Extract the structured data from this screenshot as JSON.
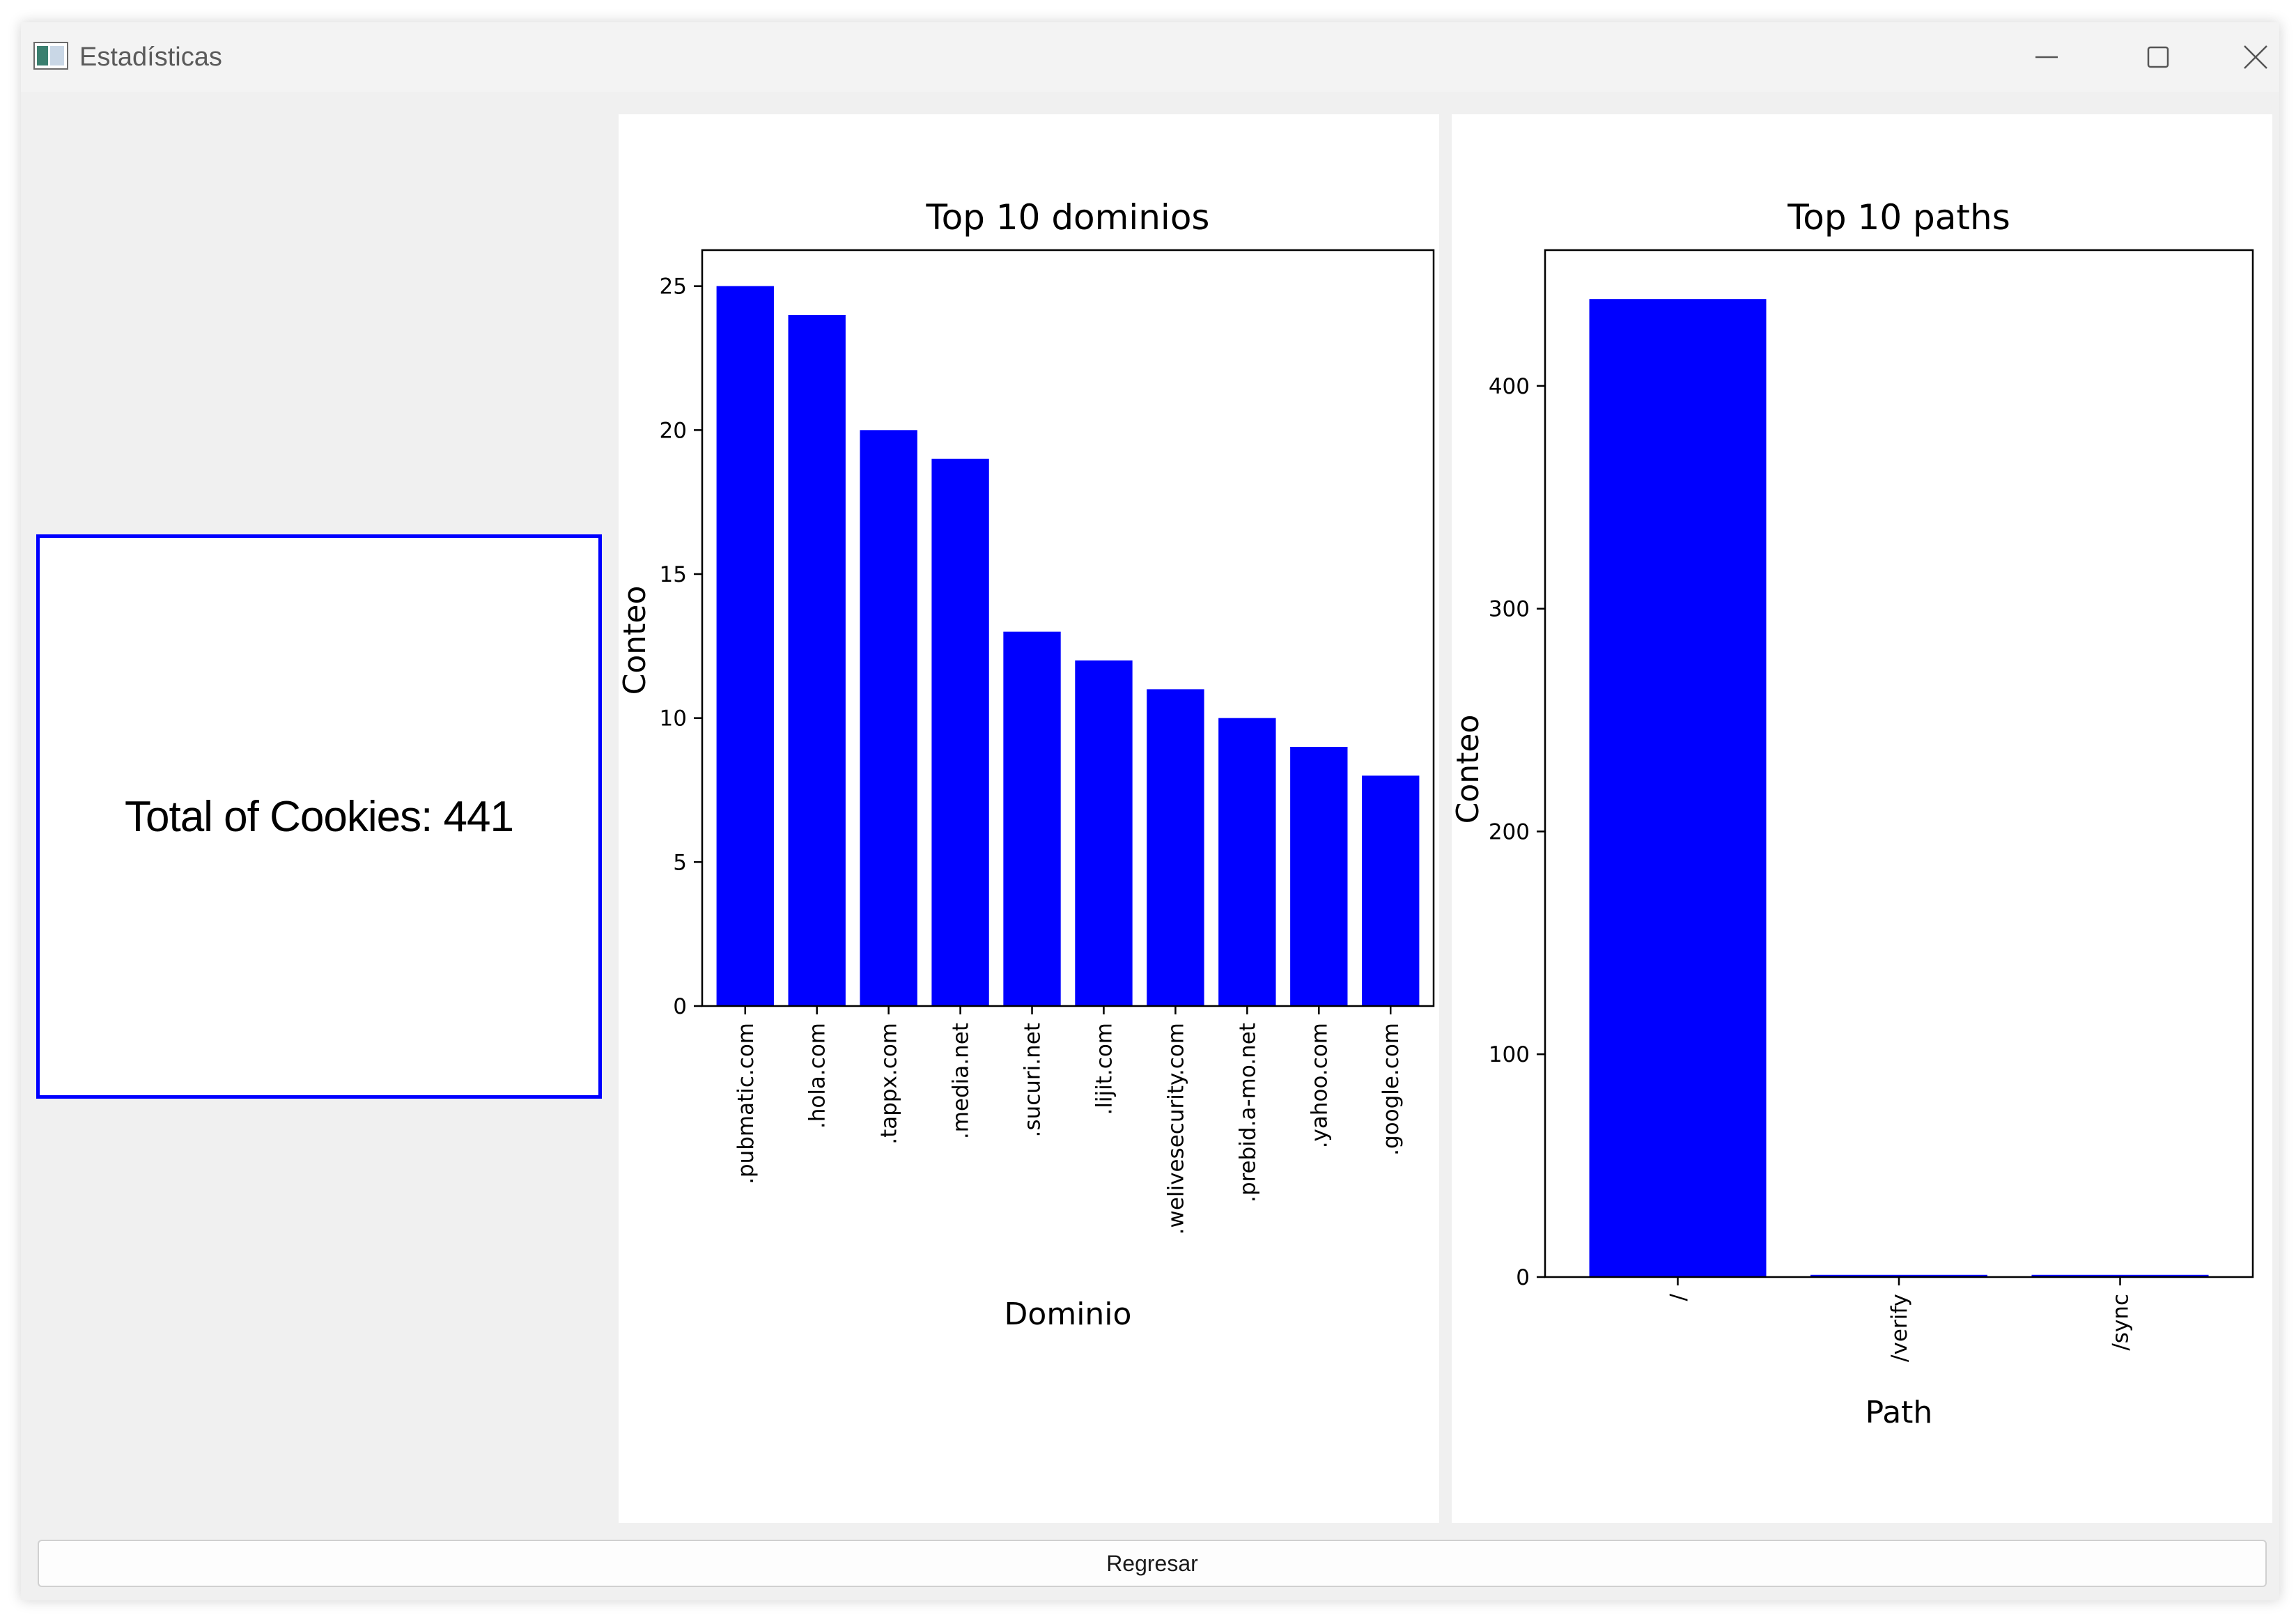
{
  "window": {
    "title": "Estadísticas"
  },
  "summary": {
    "total_label": "Total of Cookies: 441"
  },
  "footer": {
    "back_label": "Regresar"
  },
  "colors": {
    "bar": "#0000ff",
    "box_border": "#0000ff"
  },
  "chart_data": [
    {
      "type": "bar",
      "title": "Top 10 dominios",
      "xlabel": "Dominio",
      "ylabel": "Conteo",
      "categories": [
        ".pubmatic.com",
        ".hola.com",
        ".tappx.com",
        ".media.net",
        ".sucuri.net",
        ".lijit.com",
        ".welivesecurity.com",
        ".prebid.a-mo.net",
        ".yahoo.com",
        ".google.com"
      ],
      "values": [
        25,
        24,
        20,
        19,
        13,
        12,
        11,
        10,
        9,
        8
      ],
      "yticks": [
        0,
        5,
        10,
        15,
        20,
        25
      ],
      "ylim": [
        0,
        26.25
      ],
      "grid": false
    },
    {
      "type": "bar",
      "title": "Top 10 paths",
      "xlabel": "Path",
      "ylabel": "Conteo",
      "categories": [
        "/",
        "/verify",
        "/sync"
      ],
      "values": [
        439,
        1,
        1
      ],
      "yticks": [
        0,
        100,
        200,
        300,
        400
      ],
      "ylim": [
        0,
        460.95
      ],
      "grid": false
    }
  ]
}
